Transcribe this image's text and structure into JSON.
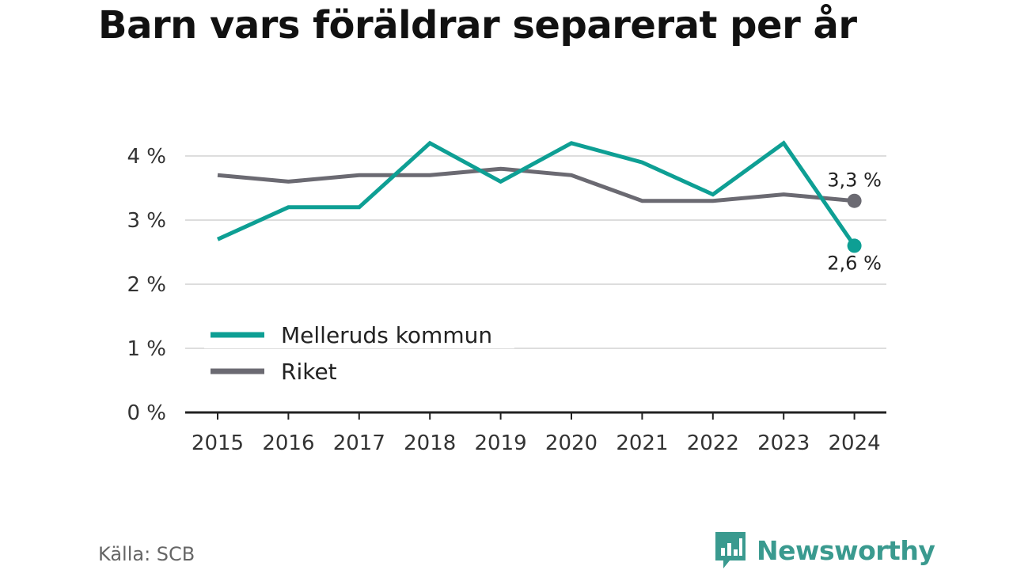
{
  "chart_data": {
    "type": "line",
    "title": "Barn vars föräldrar separerat per år",
    "xlabel": "",
    "ylabel": "",
    "categories": [
      "2015",
      "2016",
      "2017",
      "2018",
      "2019",
      "2020",
      "2021",
      "2022",
      "2023",
      "2024"
    ],
    "y_ticks": [
      {
        "value": 0,
        "label": "0 %"
      },
      {
        "value": 1,
        "label": "1 %"
      },
      {
        "value": 2,
        "label": "2 %"
      },
      {
        "value": 3,
        "label": "3 %"
      },
      {
        "value": 4,
        "label": "4 %"
      }
    ],
    "ylim": [
      0,
      4.5
    ],
    "grid": true,
    "legend_position": "bottom-left",
    "series": [
      {
        "name": "Melleruds kommun",
        "color": "#0e9f94",
        "values": [
          2.7,
          3.2,
          3.2,
          4.2,
          3.6,
          4.2,
          3.9,
          3.4,
          4.2,
          2.6
        ],
        "end_label": "2,6 %"
      },
      {
        "name": "Riket",
        "color": "#6b6a72",
        "values": [
          3.7,
          3.6,
          3.7,
          3.7,
          3.8,
          3.7,
          3.3,
          3.3,
          3.4,
          3.3
        ],
        "end_label": "3,3 %"
      }
    ]
  },
  "footer": {
    "source": "Källa: SCB",
    "brand": "Newsworthy",
    "brand_color": "#3a9a8f",
    "brand_icon": "bar-chart-speech-bubble-icon"
  }
}
